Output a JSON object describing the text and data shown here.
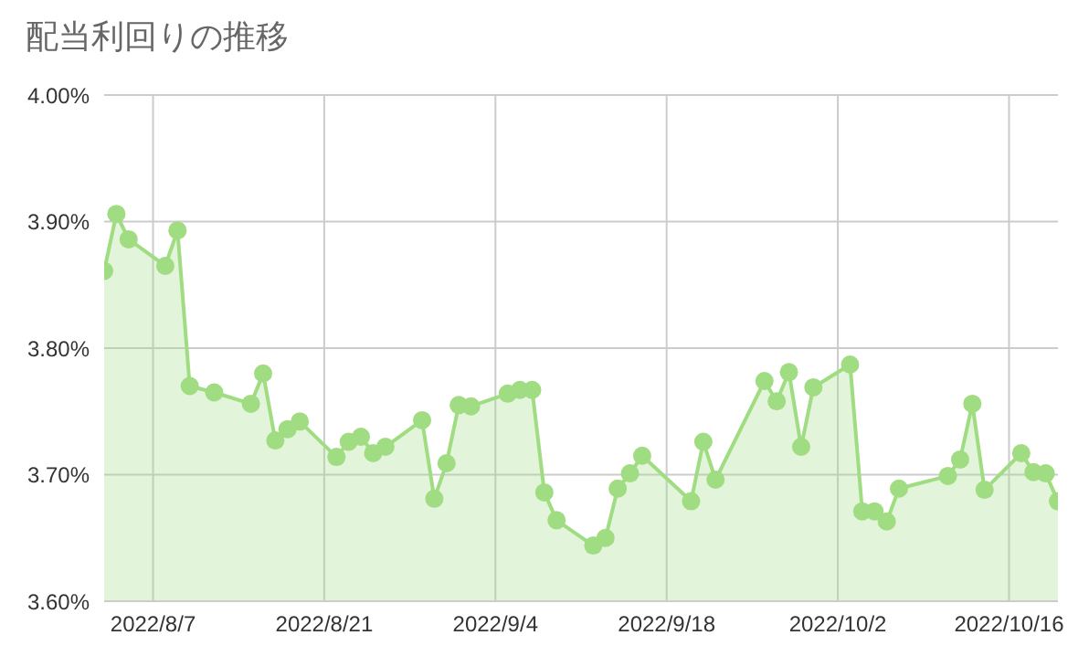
{
  "chart_data": {
    "type": "area",
    "title": "配当利回りの推移",
    "x": [
      "2022-08-03",
      "2022-08-04",
      "2022-08-05",
      "2022-08-08",
      "2022-08-09",
      "2022-08-10",
      "2022-08-12",
      "2022-08-15",
      "2022-08-16",
      "2022-08-17",
      "2022-08-18",
      "2022-08-19",
      "2022-08-22",
      "2022-08-23",
      "2022-08-24",
      "2022-08-25",
      "2022-08-26",
      "2022-08-29",
      "2022-08-30",
      "2022-08-31",
      "2022-09-01",
      "2022-09-02",
      "2022-09-05",
      "2022-09-06",
      "2022-09-07",
      "2022-09-08",
      "2022-09-09",
      "2022-09-12",
      "2022-09-13",
      "2022-09-14",
      "2022-09-15",
      "2022-09-16",
      "2022-09-20",
      "2022-09-21",
      "2022-09-22",
      "2022-09-26",
      "2022-09-27",
      "2022-09-28",
      "2022-09-29",
      "2022-09-30",
      "2022-10-03",
      "2022-10-04",
      "2022-10-05",
      "2022-10-06",
      "2022-10-07",
      "2022-10-11",
      "2022-10-12",
      "2022-10-13",
      "2022-10-14",
      "2022-10-17",
      "2022-10-18",
      "2022-10-19",
      "2022-10-20"
    ],
    "series": [
      {
        "color": "#a0dc82",
        "values": [
          3.861,
          3.906,
          3.886,
          3.865,
          3.893,
          3.77,
          3.765,
          3.756,
          3.78,
          3.727,
          3.736,
          3.742,
          3.714,
          3.726,
          3.73,
          3.717,
          3.722,
          3.743,
          3.681,
          3.709,
          3.755,
          3.754,
          3.764,
          3.767,
          3.767,
          3.686,
          3.664,
          3.644,
          3.65,
          3.689,
          3.701,
          3.715,
          3.679,
          3.726,
          3.696,
          3.774,
          3.758,
          3.781,
          3.722,
          3.769,
          3.787,
          3.671,
          3.671,
          3.663,
          3.689,
          3.699,
          3.712,
          3.756,
          3.688,
          3.717,
          3.702,
          3.701,
          3.679
        ]
      }
    ],
    "xlim": [
      "2022-08-03",
      "2022-10-20"
    ],
    "xticks": [
      {
        "value": "2022-08-07",
        "label": "2022/8/7"
      },
      {
        "value": "2022-08-21",
        "label": "2022/8/21"
      },
      {
        "value": "2022-09-04",
        "label": "2022/9/4"
      },
      {
        "value": "2022-09-18",
        "label": "2022/9/18"
      },
      {
        "value": "2022-10-02",
        "label": "2022/10/2"
      },
      {
        "value": "2022-10-16",
        "label": "2022/10/16"
      }
    ],
    "ylim": [
      3.6,
      4.0
    ],
    "yticks": [
      {
        "value": 3.6,
        "label": "3.60%"
      },
      {
        "value": 3.7,
        "label": "3.70%"
      },
      {
        "value": 3.8,
        "label": "3.80%"
      },
      {
        "value": 3.9,
        "label": "3.90%"
      },
      {
        "value": 4.0,
        "label": "4.00%"
      }
    ],
    "grid": true,
    "marker": "circle",
    "line_style": "solid"
  }
}
